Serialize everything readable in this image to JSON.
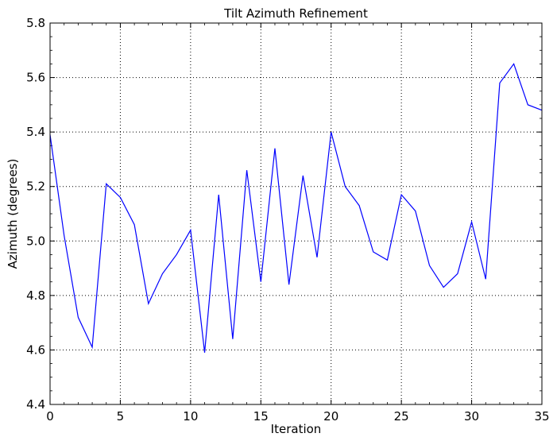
{
  "chart_data": {
    "type": "line",
    "title": "Tilt Azimuth Refinement",
    "xlabel": "Iteration",
    "ylabel": "Azimuth (degrees)",
    "xlim": [
      0,
      35
    ],
    "ylim": [
      4.4,
      5.8
    ],
    "grid": true,
    "x_ticks": [
      "0",
      "5",
      "10",
      "15",
      "20",
      "25",
      "30",
      "35"
    ],
    "y_ticks": [
      "4.4",
      "4.6",
      "4.8",
      "5.0",
      "5.2",
      "5.4",
      "5.6",
      "5.8"
    ],
    "series": [
      {
        "color": "#0000ff",
        "x": [
          0,
          1,
          2,
          3,
          4,
          5,
          6,
          7,
          8,
          9,
          10,
          11,
          12,
          13,
          14,
          15,
          16,
          17,
          18,
          19,
          20,
          21,
          22,
          23,
          24,
          25,
          26,
          27,
          28,
          29,
          30,
          31,
          32,
          33,
          34,
          35
        ],
        "y": [
          5.39,
          5.02,
          4.72,
          4.61,
          5.21,
          5.16,
          5.06,
          4.77,
          4.88,
          4.95,
          5.04,
          4.59,
          5.17,
          4.64,
          5.26,
          4.85,
          5.34,
          4.84,
          5.24,
          4.94,
          5.4,
          5.2,
          5.13,
          4.96,
          4.93,
          5.17,
          5.11,
          4.91,
          4.83,
          4.88,
          5.07,
          4.86,
          5.58,
          5.65,
          5.5,
          5.48
        ]
      }
    ]
  }
}
